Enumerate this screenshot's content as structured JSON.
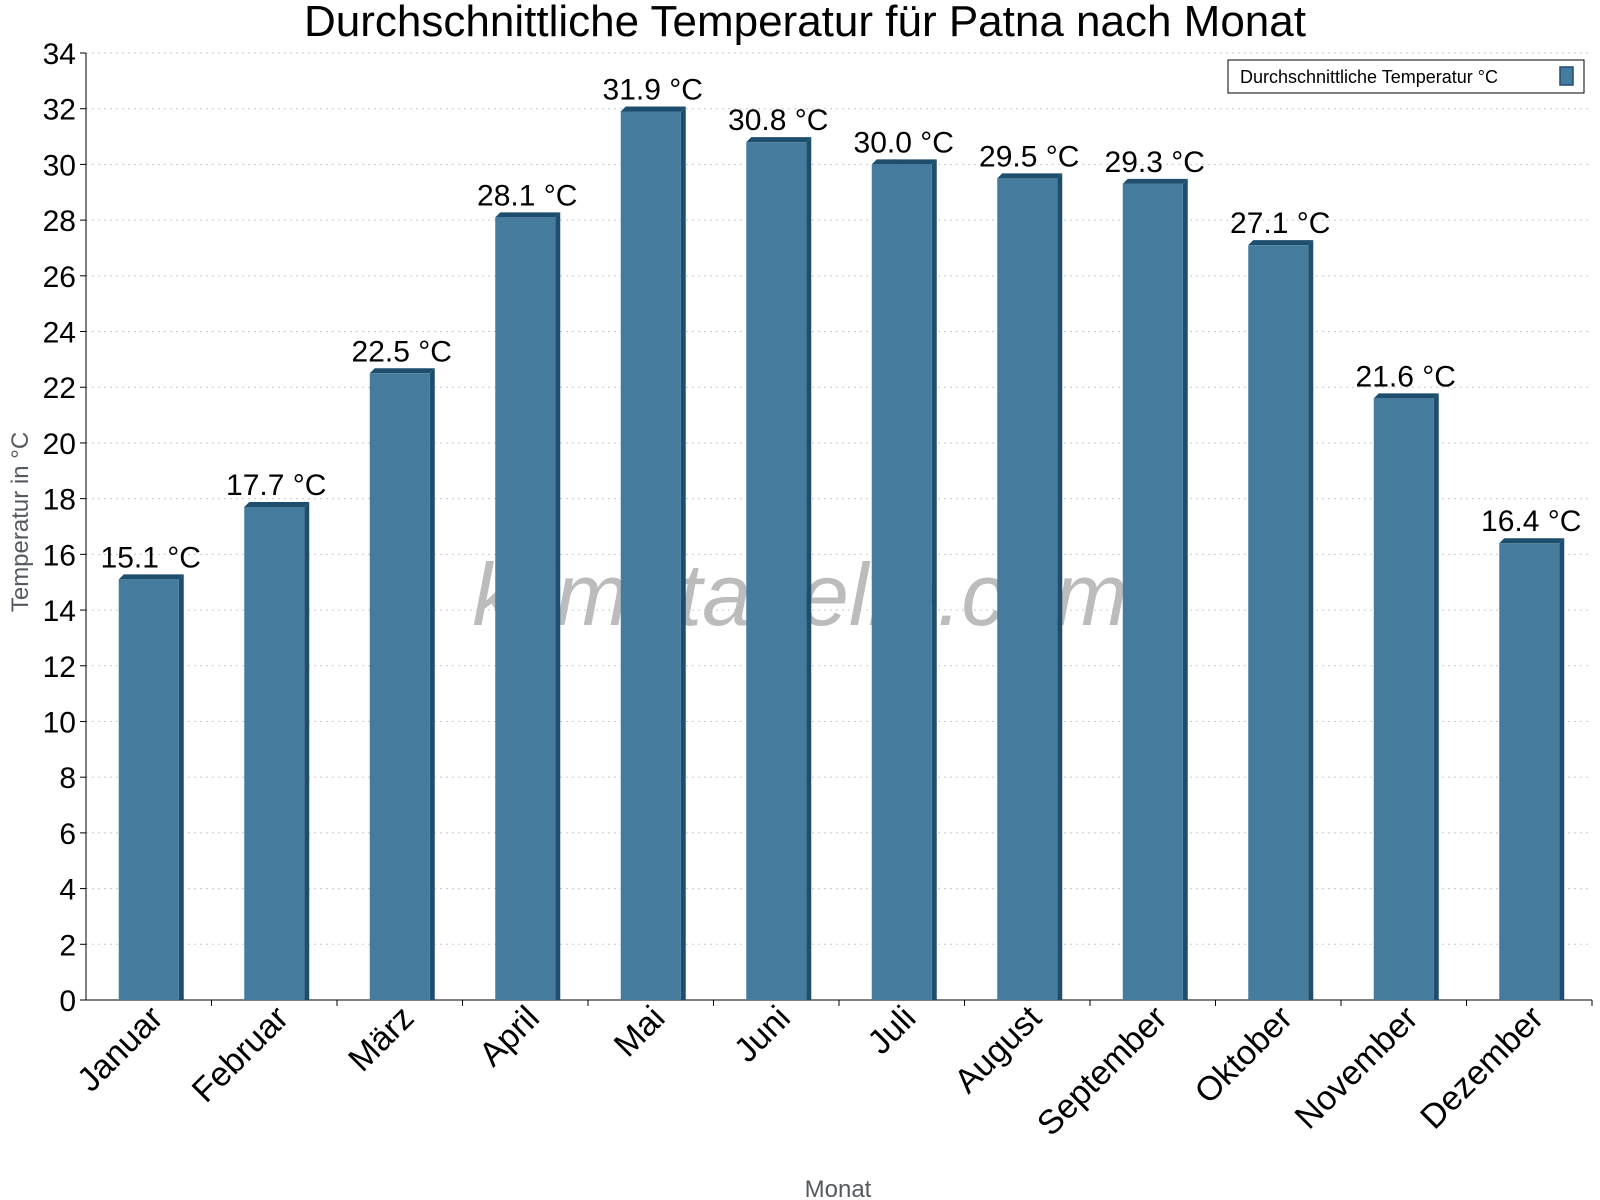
{
  "chart_data": {
    "type": "bar",
    "title": "Durchschnittliche Temperatur für Patna nach Monat",
    "xlabel": "Monat",
    "ylabel": "Temperatur in °C",
    "ylim": [
      0,
      34
    ],
    "yticks": [
      0,
      2,
      4,
      6,
      8,
      10,
      12,
      14,
      16,
      18,
      20,
      22,
      24,
      26,
      28,
      30,
      32,
      34
    ],
    "grid": true,
    "legend_position": "top-right",
    "categories": [
      "Januar",
      "Februar",
      "März",
      "April",
      "Mai",
      "Juni",
      "Juli",
      "August",
      "September",
      "Oktober",
      "November",
      "Dezember"
    ],
    "series": [
      {
        "name": "Durchschnittliche Temperatur °C",
        "values": [
          15.1,
          17.7,
          22.5,
          28.1,
          31.9,
          30.8,
          30.0,
          29.5,
          29.3,
          27.1,
          21.6,
          16.4
        ],
        "labels": [
          "15.1 °C",
          "17.7 °C",
          "22.5 °C",
          "28.1 °C",
          "31.9 °C",
          "30.8 °C",
          "30.0 °C",
          "29.5 °C",
          "29.3 °C",
          "27.1 °C",
          "21.6 °C",
          "16.4 °C"
        ],
        "color": "#457b9d",
        "edge_color": "#1d4e6e"
      }
    ],
    "watermark": "klimatabelle.com"
  }
}
